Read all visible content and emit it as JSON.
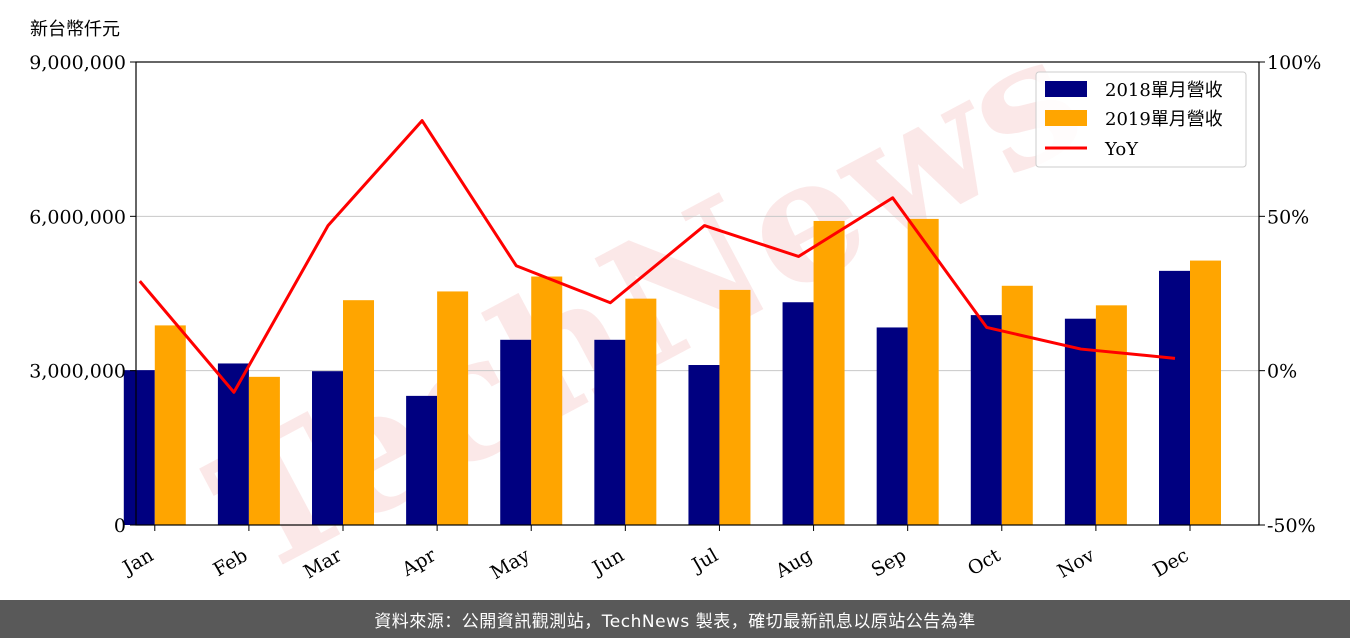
{
  "chart_data": {
    "type": "bar",
    "unit_label": "新台幣仟元",
    "categories": [
      "Jan",
      "Feb",
      "Mar",
      "Apr",
      "May",
      "Jun",
      "Jul",
      "Aug",
      "Sep",
      "Oct",
      "Nov",
      "Dec"
    ],
    "series": [
      {
        "name": "2018單月營收",
        "type": "bar",
        "color": "#000080",
        "values": [
          3010000,
          3140000,
          2990000,
          2510000,
          3600000,
          3600000,
          3110000,
          4330000,
          3840000,
          4080000,
          4010000,
          4940000
        ]
      },
      {
        "name": "2019單月營收",
        "type": "bar",
        "color": "#FFA500",
        "values": [
          3880000,
          2880000,
          4370000,
          4540000,
          4830000,
          4400000,
          4570000,
          5910000,
          5950000,
          4650000,
          4270000,
          5140000
        ]
      },
      {
        "name": "YoY",
        "type": "line",
        "axis": "right",
        "color": "#FF0000",
        "values": [
          29,
          -7,
          47,
          81,
          34,
          22,
          47,
          37,
          56,
          14,
          7,
          4
        ]
      }
    ],
    "left_axis": {
      "ylim": [
        0,
        9000000
      ],
      "ticks": [
        0,
        3000000,
        6000000,
        9000000
      ],
      "tick_labels": [
        "0",
        "3,000,000",
        "6,000,000",
        "9,000,000"
      ]
    },
    "right_axis": {
      "ylim": [
        -50,
        100
      ],
      "ticks": [
        -50,
        0,
        50,
        100
      ],
      "tick_labels": [
        "-50%",
        "0%",
        "50%",
        "100%"
      ]
    },
    "grid": "horizontal",
    "legend_position": "top-right",
    "watermark": "TechNews"
  },
  "footer": {
    "text": "資料來源：公開資訊觀測站，TechNews 製表，確切最新訊息以原站公告為準"
  }
}
